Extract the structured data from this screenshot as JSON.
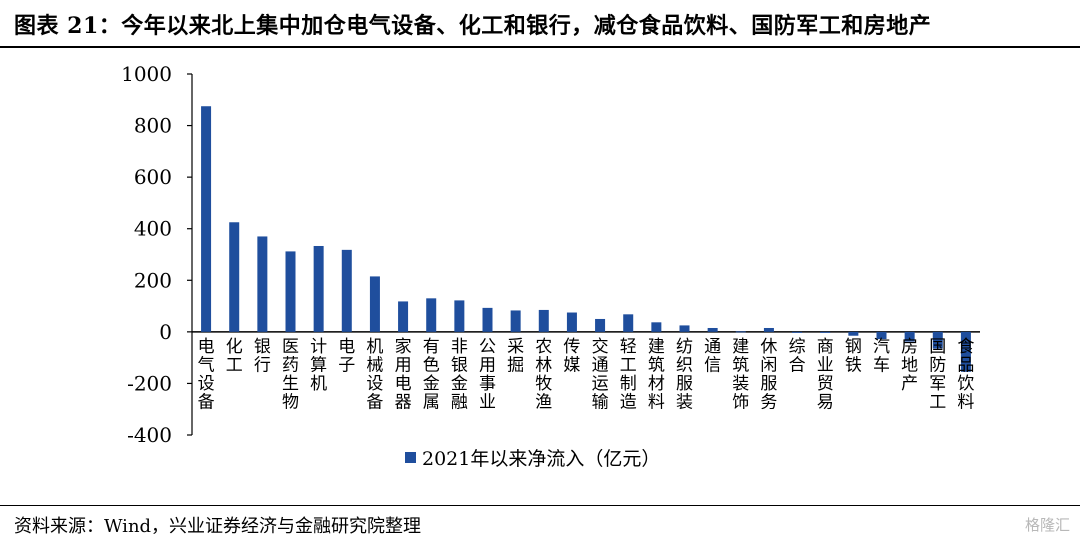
{
  "title": "图表 21：今年以来北上集中加仓电气设备、化工和银行，减仓食品饮料、国防军工和房地产",
  "source": "资料来源：Wind，兴业证券经济与金融研究院整理",
  "watermark": "格隆汇",
  "colors": {
    "bar": "#1F4E9D"
  },
  "chart_data": {
    "type": "bar",
    "title": "图表 21：今年以来北上集中加仓电气设备、化工和银行，减仓食品饮料、国防军工和房地产",
    "xlabel": "",
    "ylabel": "",
    "ylim": [
      -400,
      1000
    ],
    "yticks": [
      1000,
      800,
      600,
      400,
      200,
      0,
      -200,
      -400
    ],
    "grid": false,
    "legend_position": "bottom",
    "categories": [
      "电气设备",
      "化工",
      "银行",
      "医药生物",
      "计算机",
      "电子",
      "机械设备",
      "家用电器",
      "有色金属",
      "非银金融",
      "公用事业",
      "采掘",
      "农林牧渔",
      "传媒",
      "交通运输",
      "轻工制造",
      "建筑材料",
      "纺织服装",
      "通信",
      "建筑装饰",
      "休闲服务",
      "综合",
      "商业贸易",
      "钢铁",
      "汽车",
      "房地产",
      "国防军工",
      "食品饮料"
    ],
    "series": [
      {
        "name": "2021年以来净流入（亿元）",
        "values": [
          875,
          425,
          370,
          312,
          333,
          318,
          215,
          118,
          130,
          122,
          93,
          83,
          85,
          75,
          50,
          68,
          37,
          25,
          15,
          2,
          15,
          -3,
          -3,
          -15,
          -28,
          -38,
          -65,
          -155
        ]
      }
    ]
  }
}
